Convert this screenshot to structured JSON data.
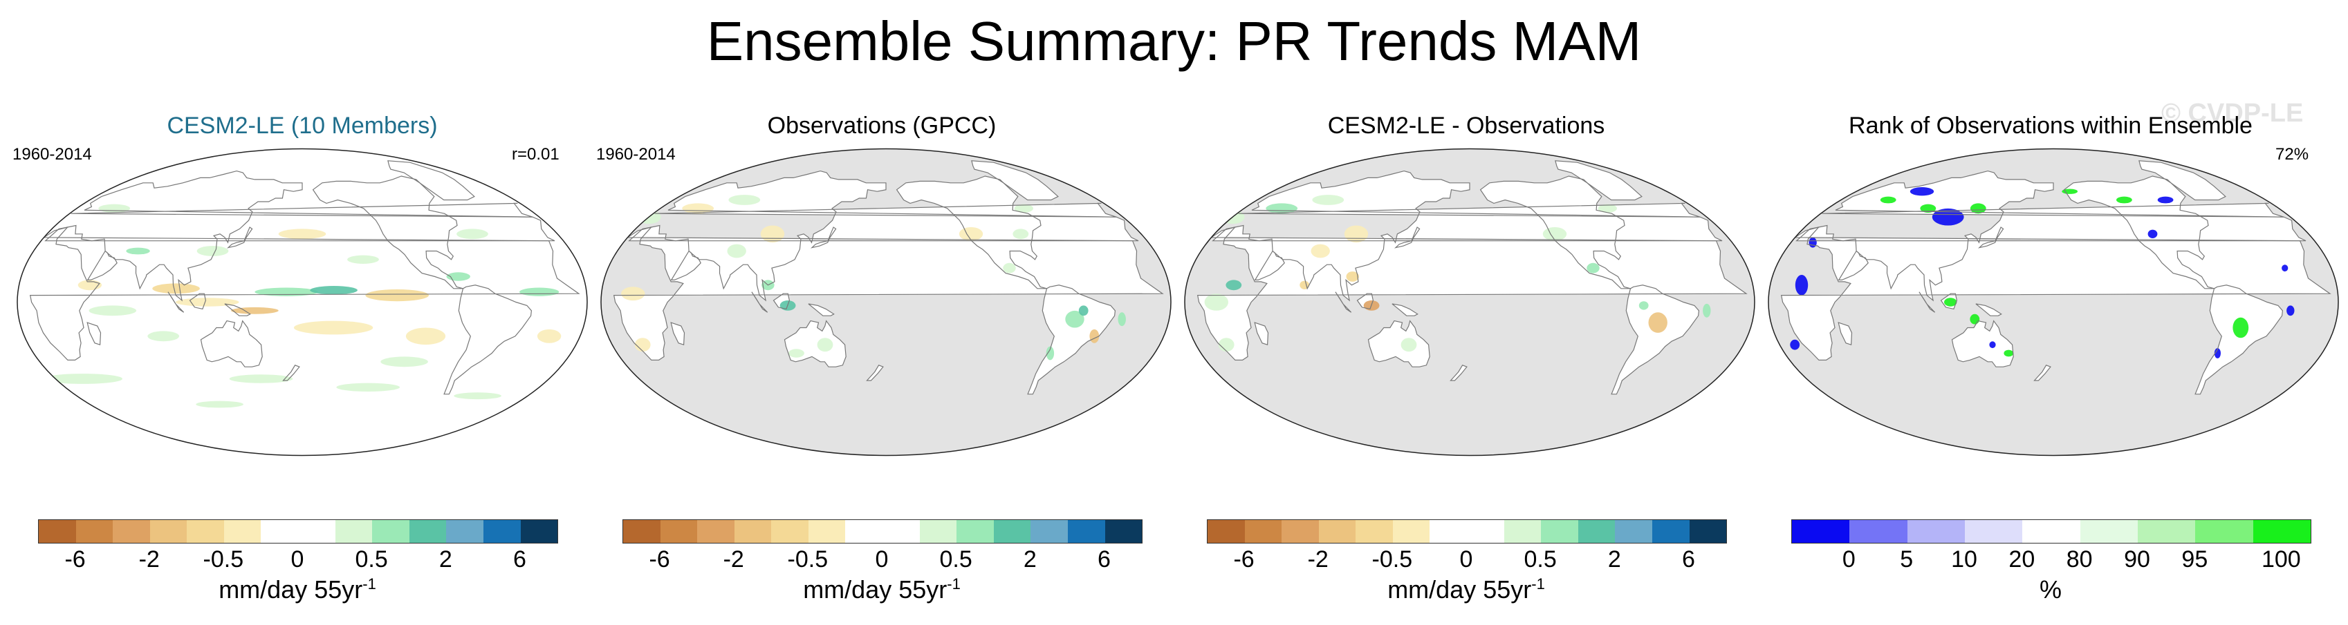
{
  "title": "Ensemble Summary: PR Trends MAM",
  "watermark": "© CVDP-LE",
  "colors": {
    "ocean_masked": "#e3e3e3",
    "land_outline": "#777777",
    "panel_title_accent": "#1f6e8c",
    "trend_palette": [
      "#b5682d",
      "#cd8744",
      "#dea263",
      "#ecc37f",
      "#f4d996",
      "#faecb8",
      "#ffffff",
      "#ffffff",
      "#d8f6d3",
      "#9be9b6",
      "#5ac3a5",
      "#6aa9c9",
      "#1772b4",
      "#0b3a5e"
    ],
    "rank_palette": [
      "#0a0af2",
      "#7474f6",
      "#b4b4f8",
      "#dedefb",
      "#ffffff",
      "#e3fae3",
      "#b9f3b6",
      "#7df27b",
      "#18f01b"
    ]
  },
  "panels": [
    {
      "title": "CESM2-LE (10 Members)",
      "left_label": "1960-2014",
      "right_label": "r=0.01",
      "map": {
        "ocean": "data",
        "pattern": "model"
      },
      "colorbar": {
        "ticks": [
          "-6",
          "-2",
          "-0.5",
          "0",
          "0.5",
          "2",
          "6"
        ],
        "units": "mm/day 55yr",
        "units_exp": "-1"
      }
    },
    {
      "title": "Observations (GPCC)",
      "left_label": "1960-2014",
      "right_label": "",
      "map": {
        "ocean": "masked",
        "pattern": "obs"
      },
      "colorbar": {
        "ticks": [
          "-6",
          "-2",
          "-0.5",
          "0",
          "0.5",
          "2",
          "6"
        ],
        "units": "mm/day 55yr",
        "units_exp": "-1"
      }
    },
    {
      "title": "CESM2-LE - Observations",
      "left_label": "",
      "right_label": "",
      "map": {
        "ocean": "masked",
        "pattern": "diff"
      },
      "colorbar": {
        "ticks": [
          "-6",
          "-2",
          "-0.5",
          "0",
          "0.5",
          "2",
          "6"
        ],
        "units": "mm/day 55yr",
        "units_exp": "-1"
      }
    },
    {
      "title": "Rank of Observations within Ensemble",
      "left_label": "",
      "right_label": "72%",
      "map": {
        "ocean": "masked",
        "pattern": "rank"
      },
      "colorbar": {
        "ticks": [
          "0",
          "5",
          "10",
          "20",
          "80",
          "90",
          "95",
          "100"
        ],
        "units": "%",
        "units_exp": ""
      }
    }
  ]
}
